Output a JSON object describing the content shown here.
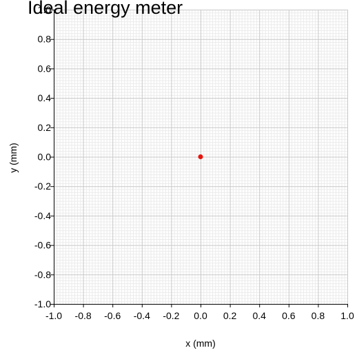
{
  "chart_data": {
    "type": "scatter",
    "title": "Ideal energy meter",
    "xlabel": "x (mm)",
    "ylabel": "y (mm)",
    "xlim": [
      -1.0,
      1.0
    ],
    "ylim": [
      -1.0,
      1.0
    ],
    "x_ticks": [
      -1.0,
      -0.8,
      -0.6,
      -0.4,
      -0.2,
      0.0,
      0.2,
      0.4,
      0.6,
      0.8,
      1.0
    ],
    "y_ticks": [
      -1.0,
      -0.8,
      -0.6,
      -0.4,
      -0.2,
      0.0,
      0.2,
      0.4,
      0.6,
      0.8,
      1.0
    ],
    "x_tick_labels": [
      "-1.0",
      "-0.8",
      "-0.6",
      "-0.4",
      "-0.2",
      "0.0",
      "0.2",
      "0.4",
      "0.6",
      "0.8",
      "1.0"
    ],
    "y_tick_labels": [
      "-1.0",
      "-0.8",
      "-0.6",
      "-0.4",
      "-0.2",
      "0.0",
      "0.2",
      "0.4",
      "0.6",
      "0.8",
      "1.0"
    ],
    "grid": true,
    "minor_grid": true,
    "legend": false,
    "series": [
      {
        "points": [
          {
            "x": 0.0,
            "y": 0.0
          }
        ],
        "color": "#e8120c"
      }
    ],
    "colors": {
      "grid_major": "#c8c8c8",
      "grid_minor": "#ebebeb",
      "axis": "#000000"
    }
  }
}
